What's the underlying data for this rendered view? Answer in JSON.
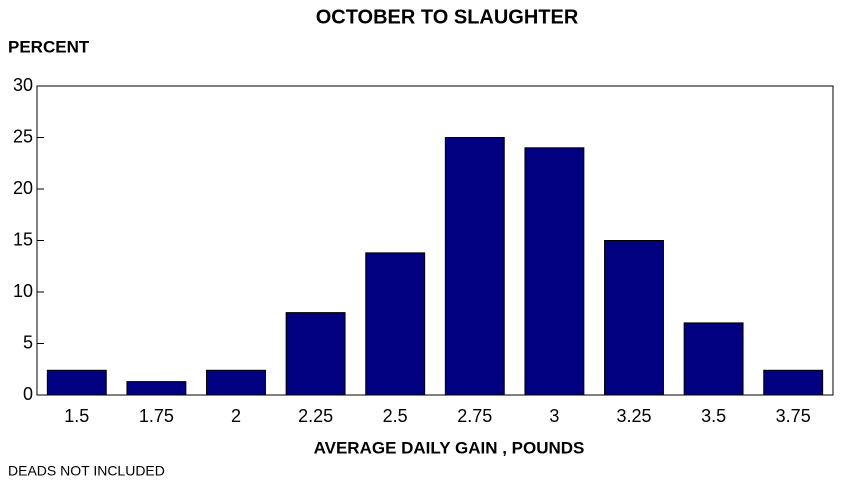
{
  "chart_data": {
    "type": "bar",
    "title": "OCTOBER TO SLAUGHTER",
    "y_label": "PERCENT",
    "x_label": "AVERAGE DAILY GAIN , POUNDS",
    "annotation": "DEADS NOT INCLUDED",
    "categories": [
      "1.5",
      "1.75",
      "2",
      "2.25",
      "2.5",
      "2.75",
      "3",
      "3.25",
      "3.5",
      "3.75"
    ],
    "values": [
      2.4,
      1.3,
      2.4,
      8,
      13.8,
      25,
      24,
      15,
      7,
      2.4
    ],
    "color": "#000080",
    "ylim": [
      0,
      30
    ],
    "yticks": [
      0,
      5,
      10,
      15,
      20,
      25,
      30
    ],
    "grid": false
  }
}
